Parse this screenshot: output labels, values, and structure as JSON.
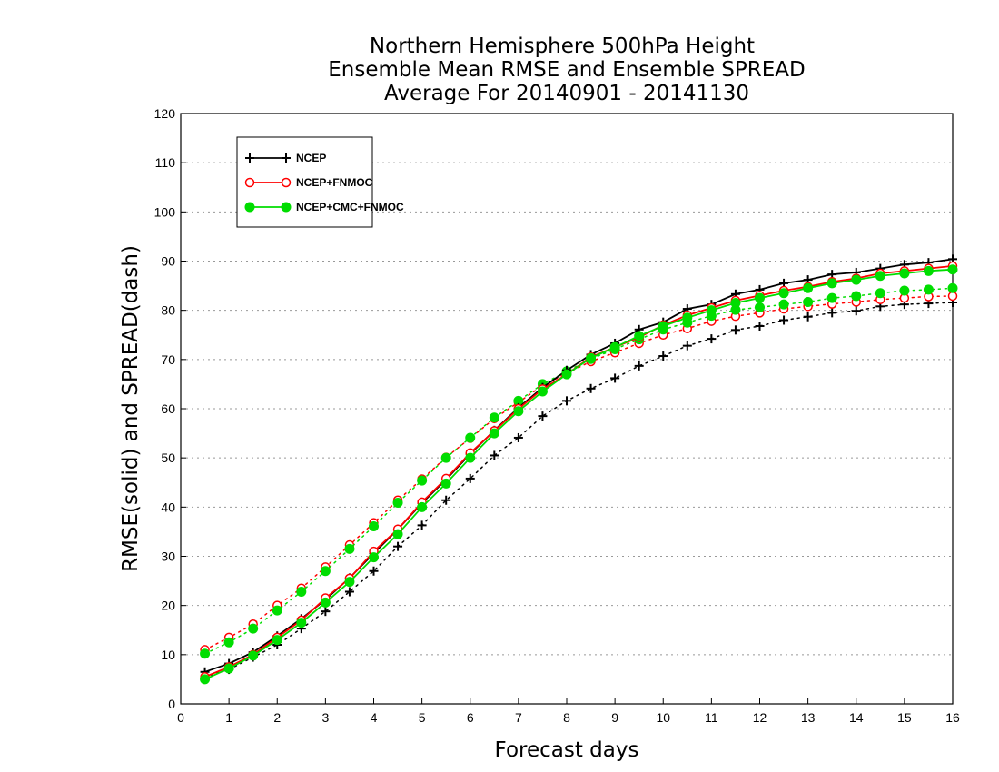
{
  "chart_data": {
    "type": "line",
    "title": [
      "Northern Hemisphere 500hPa Height",
      "Ensemble Mean RMSE and Ensemble SPREAD",
      "Average For 20140901 - 20141130"
    ],
    "xlabel": "Forecast days",
    "ylabel": "RMSE(solid) and SPREAD(dash)",
    "xlim": [
      0,
      16
    ],
    "ylim": [
      0,
      120
    ],
    "xticks": [
      0,
      1,
      2,
      3,
      4,
      5,
      6,
      7,
      8,
      9,
      10,
      11,
      12,
      13,
      14,
      15,
      16
    ],
    "yticks": [
      0,
      10,
      20,
      30,
      40,
      50,
      60,
      70,
      80,
      90,
      100,
      110,
      120
    ],
    "grid": true,
    "legend_position": "top-left",
    "x": [
      0.5,
      1,
      1.5,
      2,
      2.5,
      3,
      3.5,
      4,
      4.5,
      5,
      5.5,
      6,
      6.5,
      7,
      7.5,
      8,
      8.5,
      9,
      9.5,
      10,
      10.5,
      11,
      11.5,
      12,
      12.5,
      13,
      13.5,
      14,
      14.5,
      15,
      15.5,
      16
    ],
    "series": [
      {
        "name": "NCEP",
        "color": "#000000",
        "marker": "plus",
        "rmse": [
          6.5,
          8.2,
          10.5,
          13.8,
          17.3,
          21.2,
          25.6,
          30.6,
          35.5,
          40.8,
          45.6,
          50.8,
          55.6,
          60.2,
          64.3,
          67.8,
          71.0,
          73.3,
          76.1,
          77.6,
          80.3,
          81.2,
          83.3,
          84.2,
          85.5,
          86.2,
          87.3,
          87.7,
          88.5,
          89.3,
          89.7,
          90.4
        ],
        "spread": [
          5.5,
          7.0,
          9.5,
          12.0,
          15.3,
          18.8,
          22.8,
          27.0,
          32.0,
          36.3,
          41.4,
          45.8,
          50.5,
          54.1,
          58.5,
          61.6,
          64.1,
          66.2,
          68.7,
          70.7,
          72.8,
          74.2,
          76.0,
          76.8,
          78.0,
          78.7,
          79.5,
          79.9,
          80.8,
          81.2,
          81.4,
          81.6
        ]
      },
      {
        "name": "NCEP+FNMOC",
        "color": "#ff0000",
        "marker": "circle-open",
        "rmse": [
          5.5,
          7.5,
          10.0,
          13.5,
          17.0,
          21.5,
          25.5,
          31.0,
          35.5,
          41.0,
          45.8,
          51.0,
          55.5,
          60.0,
          64.0,
          67.0,
          70.5,
          72.5,
          74.5,
          77.0,
          79.0,
          80.5,
          82.0,
          83.0,
          84.0,
          84.8,
          85.8,
          86.5,
          87.5,
          88.0,
          88.5,
          89.0
        ],
        "spread": [
          11.0,
          13.5,
          16.2,
          20.0,
          23.5,
          27.8,
          32.3,
          36.8,
          41.4,
          45.7,
          50.1,
          54.0,
          58.0,
          61.3,
          64.7,
          67.2,
          69.6,
          71.4,
          73.3,
          75.0,
          76.3,
          77.8,
          78.8,
          79.5,
          80.3,
          80.8,
          81.3,
          81.7,
          82.2,
          82.5,
          82.8,
          82.9
        ]
      },
      {
        "name": "NCEP+CMC+FNMOC",
        "color": "#00dd00",
        "marker": "circle-filled",
        "rmse": [
          5.0,
          7.2,
          9.8,
          13.0,
          16.5,
          20.6,
          24.8,
          29.8,
          34.5,
          40.0,
          44.8,
          50.0,
          55.0,
          59.5,
          63.5,
          67.0,
          70.3,
          72.5,
          74.8,
          76.8,
          78.5,
          80.0,
          81.5,
          82.5,
          83.5,
          84.5,
          85.5,
          86.2,
          87.0,
          87.5,
          88.0,
          88.3
        ],
        "spread": [
          10.2,
          12.5,
          15.3,
          19.0,
          22.8,
          27.0,
          31.5,
          36.1,
          40.9,
          45.4,
          50.0,
          54.1,
          58.2,
          61.6,
          65.0,
          67.6,
          70.1,
          72.1,
          74.1,
          76.1,
          77.5,
          78.9,
          80.1,
          80.6,
          81.2,
          81.7,
          82.5,
          82.9,
          83.5,
          84.0,
          84.2,
          84.5
        ]
      }
    ]
  }
}
